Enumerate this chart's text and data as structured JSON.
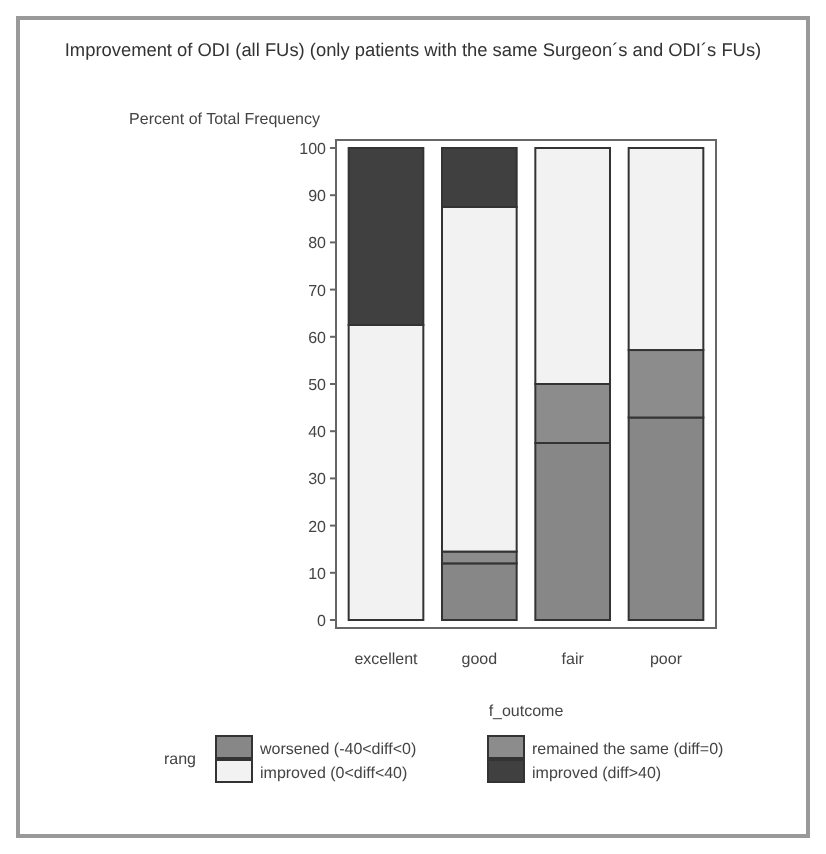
{
  "chart_data": {
    "type": "bar",
    "stacked": true,
    "title": "Improvement of ODI (all FUs) (only patients with the same Surgeon´s and ODI´s FUs)",
    "ylabel": "Percent of Total Frequency",
    "xlabel": "f_outcome",
    "legend_title": "rang",
    "legend": "bottom",
    "categories": [
      "excellent",
      "good",
      "fair",
      "poor"
    ],
    "series": [
      {
        "name": "worsened (-40<diff<0)",
        "color": "#878787",
        "values": [
          0,
          12,
          37.5,
          42.9
        ]
      },
      {
        "name": "remained the same (diff=0)",
        "color": "#8c8c8c",
        "values": [
          0,
          2.5,
          12.5,
          14.3
        ]
      },
      {
        "name": "improved (0<diff<40)",
        "color": "#f2f2f2",
        "values": [
          62.5,
          73,
          50,
          42.8
        ]
      },
      {
        "name": "improved (diff>40)",
        "color": "#404040",
        "values": [
          37.5,
          12.5,
          0,
          0
        ]
      }
    ],
    "ylim": [
      0,
      100
    ],
    "yticks": [
      0,
      10,
      20,
      30,
      40,
      50,
      60,
      70,
      80,
      90,
      100
    ],
    "grid": false
  }
}
